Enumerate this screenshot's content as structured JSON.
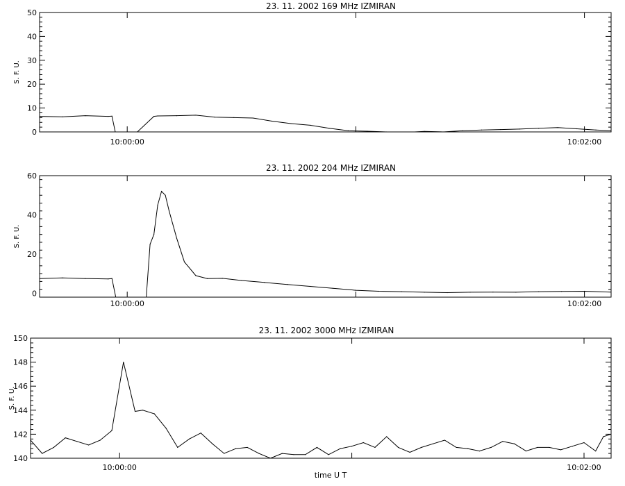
{
  "chart_data": [
    {
      "type": "line",
      "title": "23.  11.  2002    169 MHz    IZMIRAN",
      "xlabel": "",
      "ylabel": "S. F. U.",
      "xlim": [
        "09:59:37",
        "10:02:07"
      ],
      "ylim": [
        0,
        50
      ],
      "yticks": [
        "0",
        "10",
        "20",
        "30",
        "40",
        "50"
      ],
      "xticks": [
        {
          "t": "10:00:00",
          "label": "10:00:00"
        },
        {
          "t": "10:01:00",
          "label": ""
        },
        {
          "t": "10:02:00",
          "label": "10:02:00"
        }
      ],
      "series": [
        {
          "x": [
            "09:59:37",
            "09:59:43",
            "09:59:49",
            "09:59:55",
            "09:59:56",
            "09:59:57",
            "10:00:02",
            "10:00:07",
            "10:00:08",
            "10:00:13",
            "10:00:18",
            "10:00:23",
            "10:00:28",
            "10:00:33",
            "10:00:38",
            "10:00:43",
            "10:00:48",
            "10:00:53",
            "10:00:58",
            "10:01:03",
            "10:01:08",
            "10:01:13",
            "10:01:18",
            "10:01:23",
            "10:01:28",
            "10:01:33",
            "10:01:38",
            "10:01:43",
            "10:01:48",
            "10:01:53",
            "10:01:58",
            "10:02:03",
            "10:02:07"
          ],
          "values": [
            6.5,
            6.3,
            6.8,
            6.5,
            6.6,
            -1,
            -1,
            6.5,
            6.7,
            6.8,
            7.0,
            6.2,
            6.0,
            5.8,
            4.5,
            3.5,
            2.8,
            1.5,
            0.5,
            0.3,
            0.0,
            -0.2,
            0.2,
            0.0,
            0.5,
            0.8,
            1.0,
            1.2,
            1.5,
            1.8,
            1.3,
            0.8,
            0.5
          ]
        }
      ]
    },
    {
      "type": "line",
      "title": "23.  11.  2002    204 MHz    IZMIRAN",
      "xlabel": "",
      "ylabel": "S. F. U.",
      "xlim": [
        "09:59:37",
        "10:02:07"
      ],
      "ylim": [
        -2,
        60
      ],
      "yticks": [
        "0",
        "20",
        "40",
        "60"
      ],
      "xticks": [
        {
          "t": "10:00:00",
          "label": "10:00:00"
        },
        {
          "t": "10:01:00",
          "label": ""
        },
        {
          "t": "10:02:00",
          "label": "10:02:00"
        }
      ],
      "series": [
        {
          "x": [
            "09:59:37",
            "09:59:43",
            "09:59:49",
            "09:59:55",
            "09:59:56",
            "09:59:57",
            "10:00:05",
            "10:00:06",
            "10:00:07",
            "10:00:08",
            "10:00:09",
            "10:00:10",
            "10:00:11",
            "10:00:13",
            "10:00:15",
            "10:00:18",
            "10:00:21",
            "10:00:25",
            "10:00:30",
            "10:00:36",
            "10:00:42",
            "10:00:48",
            "10:00:54",
            "10:01:00",
            "10:01:06",
            "10:01:12",
            "10:01:18",
            "10:01:24",
            "10:01:30",
            "10:01:36",
            "10:01:42",
            "10:01:48",
            "10:01:54",
            "10:02:00",
            "10:02:07"
          ],
          "values": [
            7.5,
            7.8,
            7.5,
            7.3,
            7.5,
            -2,
            -2,
            25,
            30,
            45,
            52,
            50,
            42,
            28,
            16,
            9,
            7.5,
            7.6,
            6.5,
            5.5,
            4.5,
            3.5,
            2.5,
            1.5,
            1.0,
            0.8,
            0.5,
            0.3,
            0.5,
            0.6,
            0.5,
            0.8,
            0.9,
            1.0,
            0.6
          ]
        }
      ]
    },
    {
      "type": "line",
      "title": "23.  11.  2002    3000 MHz    IZMIRAN",
      "xlabel": "time  U T",
      "ylabel": "S. F. U.",
      "xlim": [
        "09:59:37",
        "10:02:07"
      ],
      "ylim": [
        140,
        150
      ],
      "yticks": [
        "140",
        "142",
        "144",
        "146",
        "148",
        "150"
      ],
      "xticks": [
        {
          "t": "10:00:00",
          "label": "10:00:00"
        },
        {
          "t": "10:01:00",
          "label": ""
        },
        {
          "t": "10:02:00",
          "label": "10:02:00"
        }
      ],
      "series": [
        {
          "x": [
            "09:59:37",
            "09:59:40",
            "09:59:43",
            "09:59:46",
            "09:59:49",
            "09:59:52",
            "09:59:55",
            "09:59:58",
            "10:00:01",
            "10:00:04",
            "10:00:06",
            "10:00:09",
            "10:00:12",
            "10:00:15",
            "10:00:18",
            "10:00:21",
            "10:00:24",
            "10:00:27",
            "10:00:30",
            "10:00:33",
            "10:00:36",
            "10:00:39",
            "10:00:42",
            "10:00:45",
            "10:00:48",
            "10:00:51",
            "10:00:54",
            "10:00:57",
            "10:01:00",
            "10:01:03",
            "10:01:06",
            "10:01:09",
            "10:01:12",
            "10:01:15",
            "10:01:18",
            "10:01:21",
            "10:01:24",
            "10:01:27",
            "10:01:30",
            "10:01:33",
            "10:01:36",
            "10:01:39",
            "10:01:42",
            "10:01:45",
            "10:01:48",
            "10:01:51",
            "10:01:54",
            "10:01:57",
            "10:02:00",
            "10:02:03",
            "10:02:05",
            "10:02:07"
          ],
          "values": [
            141.5,
            140.4,
            140.9,
            141.7,
            141.4,
            141.1,
            141.5,
            142.3,
            148.0,
            143.9,
            144.0,
            143.7,
            142.5,
            140.9,
            141.6,
            142.1,
            141.2,
            140.4,
            140.8,
            140.9,
            140.4,
            140.0,
            140.4,
            140.3,
            140.3,
            140.9,
            140.3,
            140.8,
            141.0,
            141.3,
            140.9,
            141.8,
            140.9,
            140.5,
            140.9,
            141.2,
            141.5,
            140.9,
            140.8,
            140.6,
            140.9,
            141.4,
            141.2,
            140.6,
            140.9,
            140.9,
            140.7,
            141.0,
            141.3,
            140.6,
            141.8,
            142.0
          ]
        }
      ]
    }
  ]
}
